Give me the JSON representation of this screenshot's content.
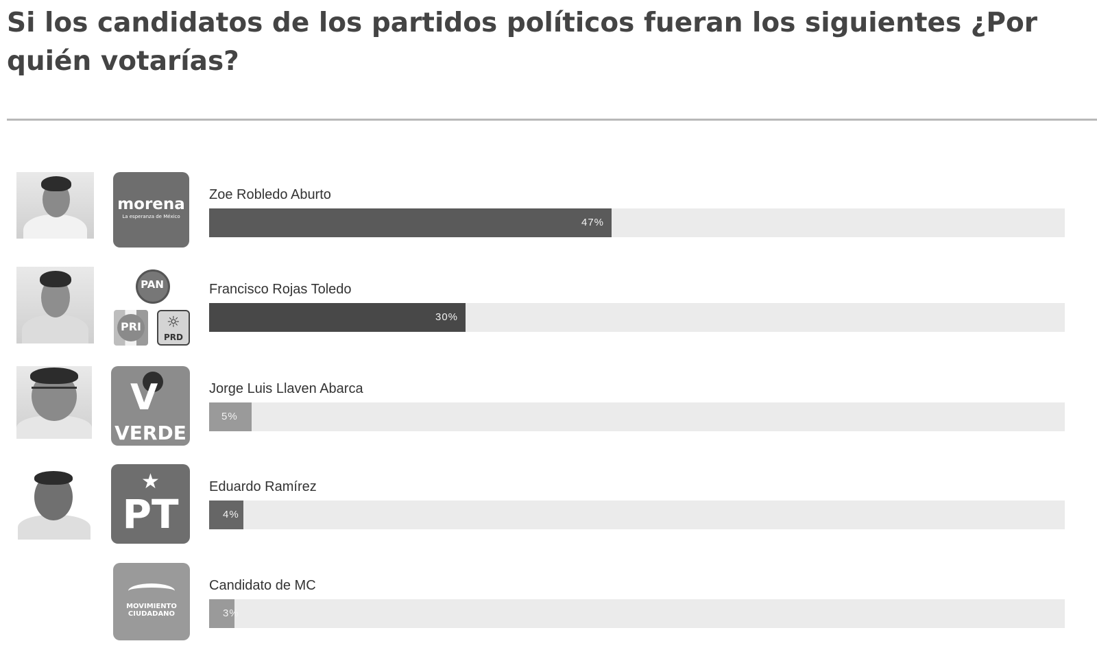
{
  "title": "Si los candidatos de los partidos políticos fueran los siguientes ¿Por quién votarías?",
  "chart_data": {
    "type": "bar",
    "orientation": "horizontal",
    "title": "Si los candidatos de los partidos políticos fueran los siguientes ¿Por quién votarías?",
    "categories": [
      "Zoe Robledo Aburto",
      "Francisco Rojas Toledo",
      "Jorge Luis Llaven Abarca",
      "Eduardo Ramírez",
      "Candidato de MC"
    ],
    "values": [
      47,
      30,
      5,
      4,
      3
    ],
    "value_labels": [
      "47%",
      "30%",
      "5%",
      "4%",
      "3%"
    ],
    "xlim": [
      0,
      100
    ],
    "grid": false,
    "legend": "none"
  },
  "rows": [
    {
      "name": "Zoe Robledo Aburto",
      "percent": 47,
      "label": "47%",
      "party_logo": "morena-logo",
      "logo_text": "morena",
      "logo_subtext": "La esperanza de México",
      "has_photo": true,
      "bar_color": "#5a5a5a"
    },
    {
      "name": "Francisco Rojas Toledo",
      "percent": 30,
      "label": "30%",
      "party_logo": "pan-pri-prd-logos",
      "logo_texts": [
        "PAN",
        "PRI",
        "PRD"
      ],
      "has_photo": true,
      "bar_color": "#484848"
    },
    {
      "name": "Jorge Luis Llaven Abarca",
      "percent": 5,
      "label": "5%",
      "party_logo": "verde-logo",
      "logo_text": "VERDE",
      "has_photo": true,
      "bar_color": "#9a9a9a"
    },
    {
      "name": "Eduardo Ramírez",
      "percent": 4,
      "label": "4%",
      "party_logo": "pt-logo",
      "logo_text": "PT",
      "has_photo": true,
      "bar_color": "#666666"
    },
    {
      "name": "Candidato de MC",
      "percent": 3,
      "label": "3%",
      "party_logo": "movimiento-ciudadano-logo",
      "logo_text": "MOVIMIENTO CIUDADANO",
      "has_photo": false,
      "bar_color": "#9a9a9a"
    }
  ]
}
